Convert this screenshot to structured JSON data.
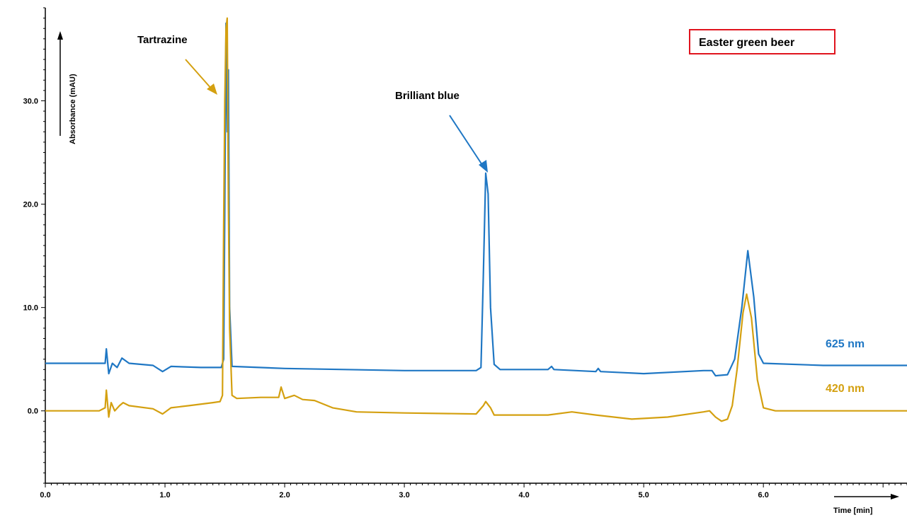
{
  "chart_data": {
    "type": "line",
    "title": "Easter green beer",
    "xlabel": "Time [min]",
    "ylabel": "Absorbance (mAU)",
    "xlim": [
      0.0,
      7.2
    ],
    "ylim": [
      -7.0,
      39.0
    ],
    "x_ticks": [
      0.0,
      1.0,
      2.0,
      3.0,
      4.0,
      5.0,
      6.0
    ],
    "x_tick_labels": [
      "0.0",
      "1.0",
      "2.0",
      "3.0",
      "4.0",
      "5.0",
      "6.0"
    ],
    "y_ticks": [
      0.0,
      10.0,
      20.0,
      30.0
    ],
    "y_tick_labels": [
      "0.0",
      "10.0",
      "20.0",
      "30.0"
    ],
    "grid": false,
    "series": [
      {
        "name": "625 nm",
        "color": "#1f77c4",
        "points": [
          [
            0.0,
            4.6
          ],
          [
            0.5,
            4.6
          ],
          [
            0.51,
            6.0
          ],
          [
            0.53,
            3.6
          ],
          [
            0.56,
            4.6
          ],
          [
            0.6,
            4.2
          ],
          [
            0.64,
            5.1
          ],
          [
            0.7,
            4.6
          ],
          [
            0.9,
            4.4
          ],
          [
            0.98,
            3.8
          ],
          [
            1.05,
            4.3
          ],
          [
            1.3,
            4.2
          ],
          [
            1.47,
            4.2
          ],
          [
            1.49,
            5.0
          ],
          [
            1.5,
            20.0
          ],
          [
            1.51,
            37.5
          ],
          [
            1.52,
            27.0
          ],
          [
            1.53,
            33.0
          ],
          [
            1.54,
            10.0
          ],
          [
            1.56,
            4.3
          ],
          [
            2.0,
            4.1
          ],
          [
            3.0,
            3.9
          ],
          [
            3.6,
            3.9
          ],
          [
            3.64,
            4.2
          ],
          [
            3.66,
            13.0
          ],
          [
            3.68,
            23.0
          ],
          [
            3.7,
            21.0
          ],
          [
            3.72,
            10.0
          ],
          [
            3.75,
            4.5
          ],
          [
            3.8,
            4.0
          ],
          [
            4.2,
            4.0
          ],
          [
            4.23,
            4.3
          ],
          [
            4.25,
            4.0
          ],
          [
            4.6,
            3.8
          ],
          [
            4.62,
            4.1
          ],
          [
            4.64,
            3.8
          ],
          [
            5.0,
            3.6
          ],
          [
            5.5,
            3.9
          ],
          [
            5.57,
            3.9
          ],
          [
            5.6,
            3.4
          ],
          [
            5.7,
            3.5
          ],
          [
            5.76,
            5.0
          ],
          [
            5.82,
            10.0
          ],
          [
            5.87,
            15.5
          ],
          [
            5.92,
            11.0
          ],
          [
            5.96,
            5.5
          ],
          [
            6.0,
            4.6
          ],
          [
            6.5,
            4.4
          ],
          [
            7.2,
            4.4
          ]
        ]
      },
      {
        "name": "420 nm",
        "color": "#d4a010",
        "points": [
          [
            0.0,
            0.0
          ],
          [
            0.45,
            0.0
          ],
          [
            0.5,
            0.3
          ],
          [
            0.51,
            2.0
          ],
          [
            0.53,
            -0.6
          ],
          [
            0.55,
            0.8
          ],
          [
            0.58,
            0.0
          ],
          [
            0.62,
            0.5
          ],
          [
            0.65,
            0.8
          ],
          [
            0.7,
            0.5
          ],
          [
            0.9,
            0.2
          ],
          [
            0.98,
            -0.3
          ],
          [
            1.05,
            0.3
          ],
          [
            1.2,
            0.5
          ],
          [
            1.4,
            0.8
          ],
          [
            1.46,
            0.9
          ],
          [
            1.48,
            1.5
          ],
          [
            1.49,
            18.0
          ],
          [
            1.5,
            30.0
          ],
          [
            1.51,
            37.0
          ],
          [
            1.52,
            38.0
          ],
          [
            1.53,
            20.0
          ],
          [
            1.54,
            8.0
          ],
          [
            1.56,
            1.5
          ],
          [
            1.6,
            1.2
          ],
          [
            1.8,
            1.3
          ],
          [
            1.95,
            1.3
          ],
          [
            1.97,
            2.3
          ],
          [
            2.0,
            1.2
          ],
          [
            2.08,
            1.5
          ],
          [
            2.15,
            1.1
          ],
          [
            2.25,
            1.0
          ],
          [
            2.4,
            0.3
          ],
          [
            2.6,
            -0.1
          ],
          [
            3.0,
            -0.2
          ],
          [
            3.6,
            -0.3
          ],
          [
            3.66,
            0.5
          ],
          [
            3.68,
            0.9
          ],
          [
            3.72,
            0.3
          ],
          [
            3.75,
            -0.4
          ],
          [
            4.2,
            -0.4
          ],
          [
            4.4,
            -0.1
          ],
          [
            4.6,
            -0.4
          ],
          [
            4.9,
            -0.8
          ],
          [
            5.2,
            -0.6
          ],
          [
            5.5,
            -0.1
          ],
          [
            5.55,
            0.0
          ],
          [
            5.6,
            -0.6
          ],
          [
            5.65,
            -1.0
          ],
          [
            5.7,
            -0.8
          ],
          [
            5.74,
            0.5
          ],
          [
            5.78,
            4.0
          ],
          [
            5.83,
            9.5
          ],
          [
            5.86,
            11.3
          ],
          [
            5.9,
            9.0
          ],
          [
            5.95,
            3.0
          ],
          [
            6.0,
            0.3
          ],
          [
            6.1,
            0.0
          ],
          [
            7.2,
            0.0
          ]
        ]
      }
    ],
    "annotations": [
      {
        "text": "Tartrazine",
        "color": "#d4a010"
      },
      {
        "text": "Brilliant blue",
        "color": "#1f77c4"
      }
    ]
  }
}
